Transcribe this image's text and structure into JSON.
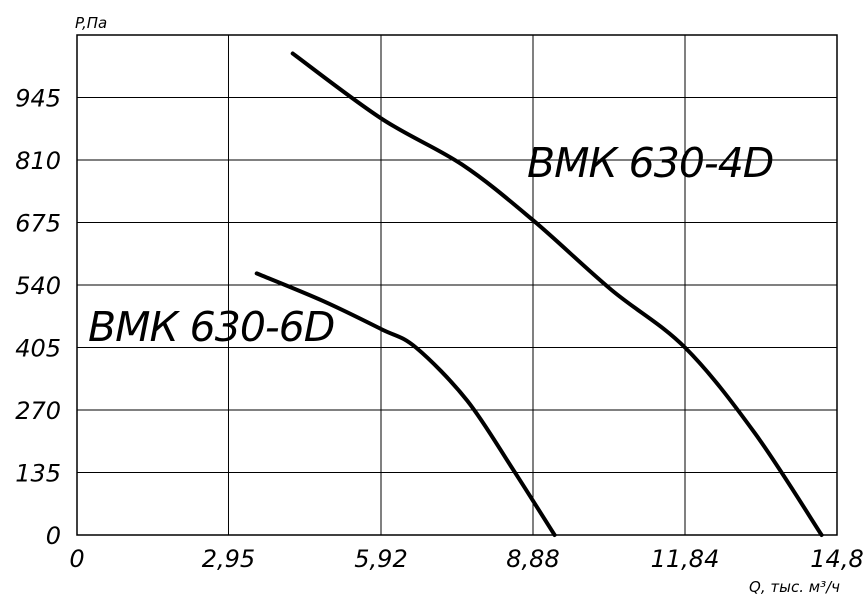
{
  "chart_data": {
    "type": "line",
    "ylabel": "P,Па",
    "xlabel": "Q, тыс. м³/ч",
    "x_ticks": [
      "0",
      "2,95",
      "5,92",
      "8,88",
      "11,84",
      "14,8"
    ],
    "y_ticks": [
      "0",
      "135",
      "270",
      "405",
      "540",
      "675",
      "810",
      "945"
    ],
    "xlim": [
      0,
      14.8
    ],
    "ylim": [
      0,
      1080
    ],
    "grid": true,
    "series": [
      {
        "name": "ВМК 630-4D",
        "x": [
          4.2,
          5.92,
          7.5,
          8.88,
          10.4,
          11.84,
          13.2,
          14.5
        ],
        "y": [
          1040,
          900,
          800,
          680,
          530,
          405,
          220,
          0
        ]
      },
      {
        "name": "ВМК 630-6D",
        "x": [
          3.5,
          4.8,
          5.92,
          6.6,
          7.6,
          8.5,
          9.3
        ],
        "y": [
          565,
          505,
          445,
          405,
          290,
          140,
          0
        ]
      }
    ]
  }
}
